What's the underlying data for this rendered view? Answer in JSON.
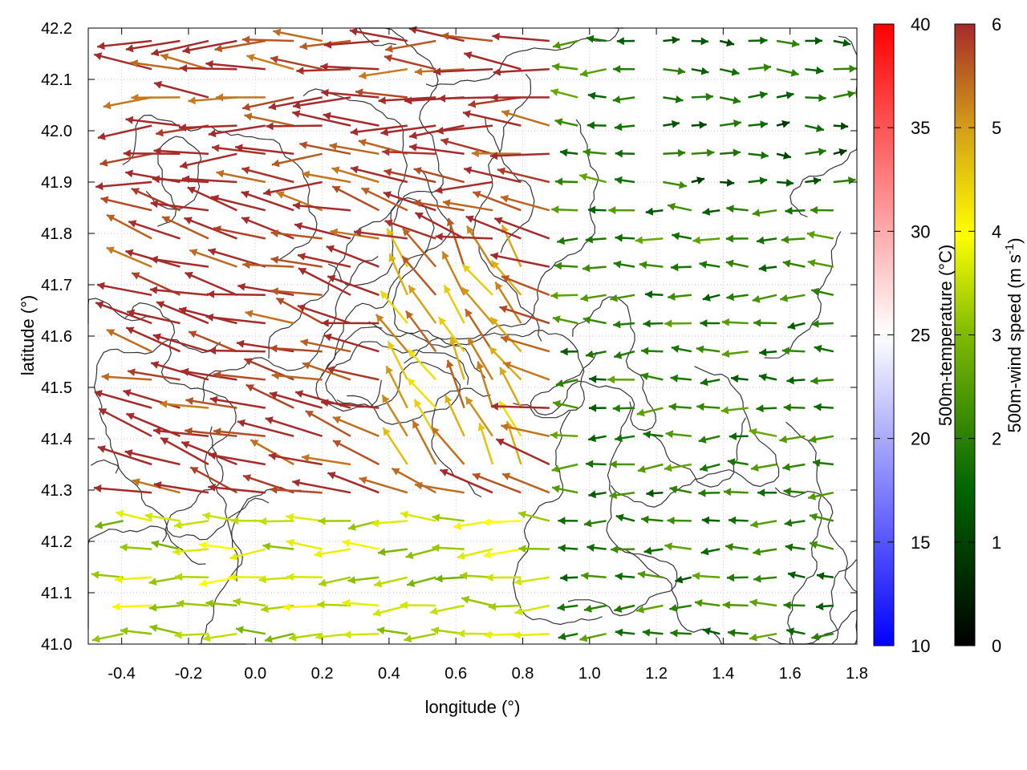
{
  "chart_data": {
    "type": "vector-field",
    "xlabel": "longitude (°)",
    "ylabel": "latitude (°)",
    "xlim": [
      -0.5,
      1.8
    ],
    "ylim": [
      41.0,
      42.2
    ],
    "xticks": [
      "-0.4",
      "-0.2",
      "0.0",
      "0.2",
      "0.4",
      "0.6",
      "0.8",
      "1.0",
      "1.2",
      "1.4",
      "1.6",
      "1.8"
    ],
    "xtick_values": [
      -0.4,
      -0.2,
      0.0,
      0.2,
      0.4,
      0.6,
      0.8,
      1.0,
      1.2,
      1.4,
      1.6,
      1.8
    ],
    "yticks": [
      "41.0",
      "41.1",
      "41.2",
      "41.3",
      "41.4",
      "41.5",
      "41.6",
      "41.7",
      "41.8",
      "41.9",
      "42.0",
      "42.1",
      "42.2"
    ],
    "ytick_values": [
      41.0,
      41.1,
      41.2,
      41.3,
      41.4,
      41.5,
      41.6,
      41.7,
      41.8,
      41.9,
      42.0,
      42.1,
      42.2
    ],
    "grid": true,
    "temperature_colorbar": {
      "label": "500m-temperature (°C)",
      "range": [
        10,
        40
      ],
      "ticks": [
        "10",
        "15",
        "20",
        "25",
        "30",
        "35",
        "40"
      ],
      "tick_values": [
        10,
        15,
        20,
        25,
        30,
        35,
        40
      ],
      "colors": [
        "#0000ff",
        "#ffffff",
        "#ff0000"
      ]
    },
    "wind_colorbar": {
      "label_main": "500m-wind speed (m s",
      "label_sup": "-1",
      "label_end": ")",
      "range": [
        0,
        6
      ],
      "ticks": [
        "0",
        "1",
        "2",
        "3",
        "4",
        "5",
        "6"
      ],
      "tick_values": [
        0,
        1,
        2,
        3,
        4,
        5,
        6
      ],
      "colors": [
        "#000000",
        "#006400",
        "#7fba00",
        "#ffff00",
        "#d4a017",
        "#a52a2a"
      ]
    },
    "wind_regions": [
      {
        "region": "west, north of 41.28",
        "direction": "westward to north-westward",
        "speed_m_s": 6.0
      },
      {
        "region": "south-west, below 41.25",
        "direction": "westward",
        "speed_m_s": 3.5
      },
      {
        "region": "centre, lon 0.4-0.8, lat 41.3-41.7",
        "direction": "north-westward",
        "speed_m_s": 5.0
      },
      {
        "region": "east, lon 1.0-1.8",
        "direction": "westward",
        "speed_m_s": 2.0
      },
      {
        "region": "north-east, lon 1.2-1.8, lat 41.85-42.2",
        "direction": "eastward",
        "speed_m_s": 1.5
      }
    ],
    "contours": "terrain elevation contours (grey lines)"
  }
}
